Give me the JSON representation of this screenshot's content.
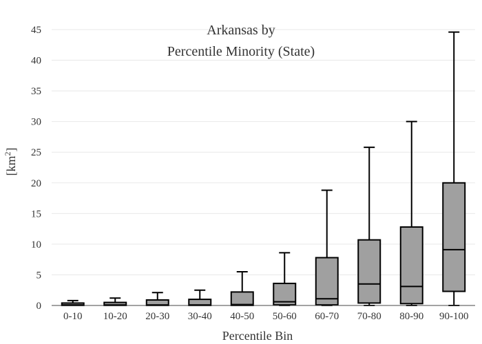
{
  "chart_data": {
    "type": "box",
    "title_line1": "Arkansas  by",
    "title_line2": "Percentile Minority (State)",
    "xlabel": "Percentile Bin",
    "ylabel": "[km",
    "ylabel_sup": "2",
    "ylabel_close": "]",
    "ylim": [
      0,
      45
    ],
    "yticks": [
      0,
      5,
      10,
      15,
      20,
      25,
      30,
      35,
      40,
      45
    ],
    "grid": true,
    "box_color": "#a0a0a0",
    "categories": [
      "0-10",
      "10-20",
      "20-30",
      "30-40",
      "40-50",
      "50-60",
      "60-70",
      "70-80",
      "80-90",
      "90-100"
    ],
    "boxes": [
      {
        "min": 0,
        "q1": 0,
        "median": 0.1,
        "q3": 0.4,
        "max": 0.8
      },
      {
        "min": 0,
        "q1": 0,
        "median": 0.1,
        "q3": 0.5,
        "max": 1.2
      },
      {
        "min": 0,
        "q1": 0,
        "median": 0.1,
        "q3": 0.9,
        "max": 2.1
      },
      {
        "min": 0,
        "q1": 0,
        "median": 0.1,
        "q3": 1.0,
        "max": 2.5
      },
      {
        "min": 0,
        "q1": 0,
        "median": 0.15,
        "q3": 2.2,
        "max": 5.5
      },
      {
        "min": 0,
        "q1": 0.1,
        "median": 0.6,
        "q3": 3.6,
        "max": 8.6
      },
      {
        "min": 0,
        "q1": 0.1,
        "median": 1.1,
        "q3": 7.8,
        "max": 18.8
      },
      {
        "min": 0,
        "q1": 0.4,
        "median": 3.5,
        "q3": 10.7,
        "max": 25.8
      },
      {
        "min": 0,
        "q1": 0.3,
        "median": 3.1,
        "q3": 12.8,
        "max": 30.0
      },
      {
        "min": 0,
        "q1": 2.3,
        "median": 9.1,
        "q3": 20.0,
        "max": 44.6
      }
    ]
  }
}
